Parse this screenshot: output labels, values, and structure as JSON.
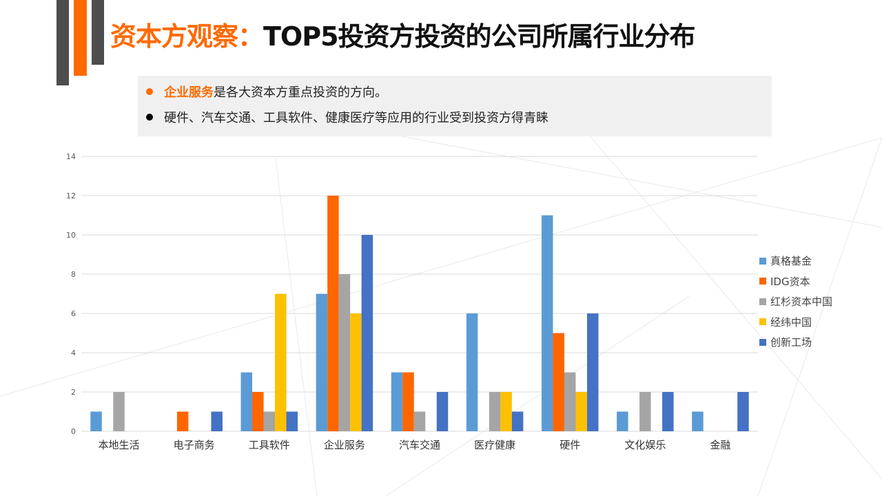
{
  "header": {
    "title_accent": "资本方观察：",
    "title_rest": "TOP5投资方投资的公司所属行业分布"
  },
  "notes": [
    {
      "highlight": "企业服务",
      "text": "是各大资本方重点投资的方向。",
      "bullet_color": "#ff6a00"
    },
    {
      "highlight": "",
      "text": "硬件、汽车交通、工具软件、健康医疗等应用的行业受到投资方得青睐",
      "bullet_color": "#000000"
    }
  ],
  "chart_data": {
    "type": "bar",
    "categories": [
      "本地生活",
      "电子商务",
      "工具软件",
      "企业服务",
      "汽车交通",
      "医疗健康",
      "硬件",
      "文化娱乐",
      "金融"
    ],
    "series": [
      {
        "name": "真格基金",
        "color": "#5b9bd5",
        "values": [
          1,
          0,
          3,
          7,
          3,
          6,
          11,
          1,
          1
        ]
      },
      {
        "name": "IDG资本",
        "color": "#ff6600",
        "values": [
          0,
          1,
          2,
          12,
          3,
          0,
          5,
          0,
          0
        ]
      },
      {
        "name": "红杉资本中国",
        "color": "#a5a5a5",
        "values": [
          2,
          0,
          1,
          8,
          1,
          2,
          3,
          2,
          0
        ]
      },
      {
        "name": "经纬中国",
        "color": "#ffc000",
        "values": [
          0,
          0,
          7,
          6,
          0,
          2,
          2,
          0,
          0
        ]
      },
      {
        "name": "创新工场",
        "color": "#4472c4",
        "values": [
          0,
          1,
          1,
          10,
          2,
          1,
          6,
          2,
          2
        ]
      }
    ],
    "y_ticks": [
      0,
      2,
      4,
      6,
      8,
      10,
      12,
      14
    ],
    "ylim": [
      0,
      14
    ],
    "grid": true,
    "legend_position": "right"
  }
}
